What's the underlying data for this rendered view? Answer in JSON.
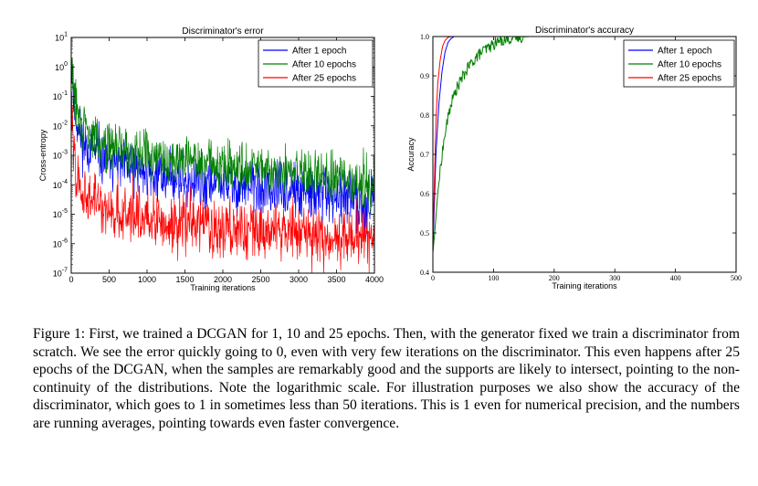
{
  "chart_data": [
    {
      "type": "line",
      "title": "Discriminator's error",
      "xlabel": "Training iterations",
      "ylabel": "Cross-entropy",
      "xlim": [
        0,
        4000
      ],
      "ylim": [
        1e-07,
        10
      ],
      "yscale": "log",
      "x_ticks": [
        "0",
        "500",
        "1000",
        "1500",
        "2000",
        "2500",
        "3000",
        "3500",
        "4000"
      ],
      "y_ticks": [
        {
          "base": "10",
          "exp": "-7"
        },
        {
          "base": "10",
          "exp": "-6"
        },
        {
          "base": "10",
          "exp": "-5"
        },
        {
          "base": "10",
          "exp": "-4"
        },
        {
          "base": "10",
          "exp": "-3"
        },
        {
          "base": "10",
          "exp": "-2"
        },
        {
          "base": "10",
          "exp": "-1"
        },
        {
          "base": "10",
          "exp": "0"
        },
        {
          "base": "10",
          "exp": "1"
        }
      ],
      "legend_position": "top-right",
      "grid": false,
      "series": [
        {
          "name": "After 1 epoch",
          "color": "#0000ff",
          "x": [
            0,
            25,
            50,
            100,
            150,
            250,
            400,
            600,
            900,
            1200,
            1600,
            2000,
            2500,
            3000,
            3500,
            4000
          ],
          "y": [
            1.0,
            0.1,
            0.02,
            0.006,
            0.003,
            0.0015,
            0.0008,
            0.00045,
            0.0003,
            0.0002,
            0.00013,
            0.0001,
            7e-05,
            5e-05,
            3.5e-05,
            2.5e-05
          ]
        },
        {
          "name": "After 10 epochs",
          "color": "#008000",
          "x": [
            0,
            25,
            50,
            100,
            150,
            250,
            400,
            600,
            900,
            1200,
            1600,
            2000,
            2500,
            3000,
            3500,
            4000
          ],
          "y": [
            1.2,
            0.3,
            0.08,
            0.02,
            0.01,
            0.005,
            0.003,
            0.0018,
            0.0012,
            0.0009,
            0.0006,
            0.00045,
            0.00032,
            0.00022,
            0.00016,
            0.00012
          ]
        },
        {
          "name": "After 25 epochs",
          "color": "#ff0000",
          "x": [
            0,
            25,
            50,
            100,
            150,
            250,
            400,
            600,
            900,
            1200,
            1600,
            2000,
            2500,
            3000,
            3500,
            4000
          ],
          "y": [
            0.05,
            0.002,
            0.0003,
            0.0001,
            6e-05,
            3e-05,
            2e-05,
            1.2e-05,
            8e-06,
            6e-06,
            4.5e-06,
            3.5e-06,
            2.8e-06,
            2.2e-06,
            1.8e-06,
            1.5e-06
          ]
        }
      ]
    },
    {
      "type": "line",
      "title": "Discriminator's accuracy",
      "xlabel": "Training iterations",
      "ylabel": "Accuracy",
      "xlim": [
        0,
        500
      ],
      "ylim": [
        0.4,
        1.0
      ],
      "x_ticks": [
        "0",
        "100",
        "200",
        "300",
        "400",
        "500"
      ],
      "y_ticks": [
        "0.4",
        "0.5",
        "0.6",
        "0.7",
        "0.8",
        "0.9",
        "1.0"
      ],
      "legend_position": "top-right",
      "grid": false,
      "series": [
        {
          "name": "After 1 epoch",
          "color": "#0000ff",
          "x": [
            0,
            2,
            5,
            10,
            15,
            20,
            25,
            30,
            35,
            40,
            50,
            500
          ],
          "y": [
            0.45,
            0.55,
            0.7,
            0.83,
            0.91,
            0.96,
            0.985,
            0.995,
            1.0,
            1.0,
            1.0,
            1.0
          ]
        },
        {
          "name": "After 10 epochs",
          "color": "#008000",
          "x": [
            0,
            3,
            8,
            15,
            22,
            30,
            40,
            50,
            60,
            70,
            80,
            90,
            100,
            110,
            120,
            130,
            145,
            160,
            500
          ],
          "y": [
            0.45,
            0.5,
            0.6,
            0.7,
            0.77,
            0.83,
            0.87,
            0.9,
            0.925,
            0.945,
            0.96,
            0.97,
            0.98,
            0.99,
            0.993,
            0.996,
            0.999,
            1.0,
            1.0
          ]
        },
        {
          "name": "After 25 epochs",
          "color": "#ff0000",
          "x": [
            0,
            2,
            5,
            8,
            12,
            16,
            20,
            25,
            30,
            500
          ],
          "y": [
            0.45,
            0.6,
            0.78,
            0.88,
            0.94,
            0.975,
            0.99,
            0.998,
            1.0,
            1.0
          ]
        }
      ]
    }
  ],
  "caption": "Figure 1: First, we trained a DCGAN for 1, 10 and 25 epochs. Then, with the generator fixed we train a discriminator from scratch. We see the error quickly going to 0, even with very few iterations on the discriminator. This even happens after 25 epochs of the DCGAN, when the samples are remarkably good and the supports are likely to intersect, pointing to the non-continuity of the distributions. Note the logarithmic scale. For illustration purposes we also show the accuracy of the discriminator, which goes to 1 in sometimes less than 50 iterations. This is 1 even for numerical precision, and the numbers are running averages, pointing towards even faster convergence."
}
